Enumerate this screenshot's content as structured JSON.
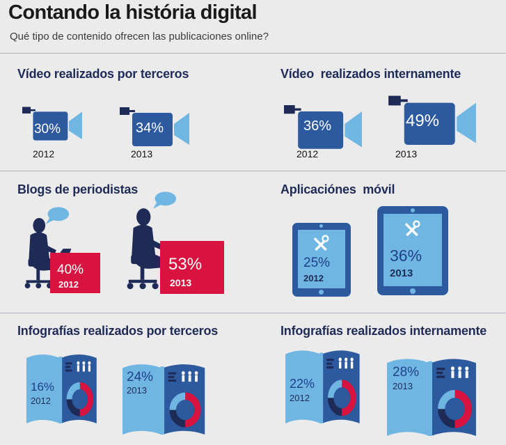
{
  "header": {
    "title": "Contando la história digital",
    "subtitle": "Qué tipo de contenido ofrecen las publicaciones online?"
  },
  "colors": {
    "navy": "#1f2b57",
    "dark_blue": "#2d5a9e",
    "light_blue": "#6fb7e2",
    "red": "#d9133f",
    "background": "#ebebeb"
  },
  "sections": {
    "video_terceros": {
      "title": "Vídeo realizados por terceros",
      "icon": "video-camera-icon",
      "items": [
        {
          "pct": "30%",
          "year": "2012",
          "value": 30
        },
        {
          "pct": "34%",
          "year": "2013",
          "value": 34
        }
      ]
    },
    "video_interno": {
      "title": "Vídeo  realizados internamente",
      "icon": "video-camera-icon",
      "items": [
        {
          "pct": "36%",
          "year": "2012",
          "value": 36
        },
        {
          "pct": "49%",
          "year": "2013",
          "value": 49
        }
      ]
    },
    "blogs": {
      "title": "Blogs de periodistas",
      "icon": "journalist-at-desk-icon",
      "items": [
        {
          "pct": "40%",
          "year": "2012",
          "value": 40
        },
        {
          "pct": "53%",
          "year": "2013",
          "value": 53
        }
      ]
    },
    "apps": {
      "title": "Aplicaciónes  móvil",
      "icon": "tablet-tools-icon",
      "items": [
        {
          "pct": "25%",
          "year": "2012",
          "value": 25
        },
        {
          "pct": "36%",
          "year": "2013",
          "value": 36
        }
      ]
    },
    "info_terceros": {
      "title": "Infografías realizados por terceros",
      "icon": "infographic-book-icon",
      "items": [
        {
          "pct": "16%",
          "year": "2012",
          "value": 16
        },
        {
          "pct": "24%",
          "year": "2013",
          "value": 24
        }
      ]
    },
    "info_interno": {
      "title": "Infografías realizados internamente",
      "icon": "infographic-book-icon",
      "items": [
        {
          "pct": "22%",
          "year": "2012",
          "value": 22
        },
        {
          "pct": "28%",
          "year": "2013",
          "value": 28
        }
      ]
    }
  }
}
